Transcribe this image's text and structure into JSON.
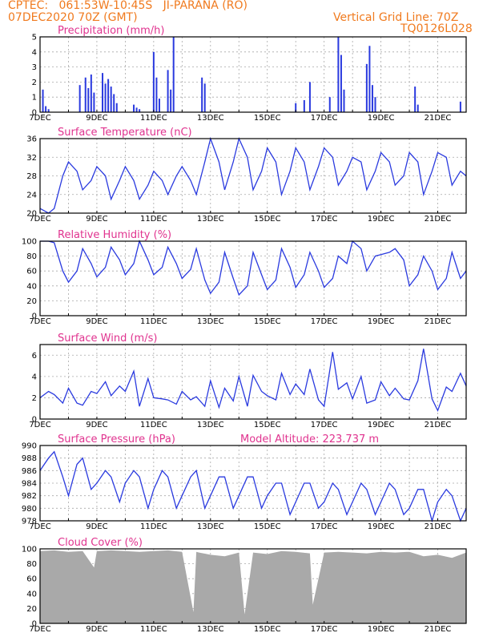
{
  "header": {
    "line1": "CPTEC:   061:53W-10:45S   JI-PARANA (RO)",
    "line2": "07DEC2020 70Z (GMT)",
    "grid_note": "Vertical Grid Line: 70Z",
    "code": "TQ0126L028"
  },
  "model_altitude": "Model Altitude: 223.737 m",
  "x_ticks": [
    "7DEC",
    "9DEC",
    "11DEC",
    "13DEC",
    "15DEC",
    "17DEC",
    "19DEC",
    "21DEC"
  ],
  "colors": {
    "header": "#f07a1e",
    "title": "#e0338f",
    "line": "#2a3adf",
    "cloud": "#a9a9a9"
  },
  "chart_data": [
    {
      "type": "bar",
      "title": "Precipitation (mm/h)",
      "ylim": [
        0,
        5
      ],
      "yticks": [
        0,
        1,
        2,
        3,
        4,
        5
      ],
      "x": [
        7.1,
        7.2,
        7.3,
        8.4,
        8.6,
        8.7,
        8.8,
        8.9,
        9.2,
        9.3,
        9.4,
        9.5,
        9.6,
        9.7,
        10.3,
        10.4,
        10.5,
        11.0,
        11.1,
        11.2,
        11.5,
        11.6,
        11.7,
        12.7,
        12.8,
        16.0,
        16.3,
        16.5,
        17.2,
        17.5,
        17.6,
        17.7,
        18.5,
        18.6,
        18.7,
        18.8,
        20.2,
        20.3,
        21.8
      ],
      "values": [
        1.5,
        0.4,
        0.2,
        1.8,
        2.3,
        1.6,
        2.5,
        1.3,
        2.6,
        1.9,
        2.2,
        1.7,
        1.2,
        0.6,
        0.5,
        0.3,
        0.2,
        4.0,
        2.3,
        0.9,
        2.8,
        1.5,
        5.0,
        2.3,
        1.9,
        0.6,
        0.8,
        2.0,
        1.0,
        5.0,
        3.8,
        1.5,
        3.2,
        4.4,
        1.8,
        1.0,
        1.7,
        0.5,
        0.7
      ]
    },
    {
      "type": "line",
      "title": "Surface Temperature (nC)",
      "ylim": [
        20,
        36
      ],
      "yticks": [
        20,
        24,
        28,
        32,
        36
      ],
      "x": [
        7.0,
        7.3,
        7.5,
        7.8,
        8.0,
        8.3,
        8.5,
        8.8,
        9.0,
        9.3,
        9.5,
        9.8,
        10.0,
        10.3,
        10.5,
        10.8,
        11.0,
        11.3,
        11.5,
        11.8,
        12.0,
        12.3,
        12.5,
        12.8,
        13.0,
        13.3,
        13.5,
        13.8,
        14.0,
        14.3,
        14.5,
        14.8,
        15.0,
        15.3,
        15.5,
        15.8,
        16.0,
        16.3,
        16.5,
        16.8,
        17.0,
        17.3,
        17.5,
        17.8,
        18.0,
        18.3,
        18.5,
        18.8,
        19.0,
        19.3,
        19.5,
        19.8,
        20.0,
        20.3,
        20.5,
        20.8,
        21.0,
        21.3,
        21.5,
        21.8,
        22.0
      ],
      "values": [
        21,
        20,
        21,
        28,
        31,
        29,
        25,
        27,
        30,
        28,
        23,
        27,
        30,
        27,
        23,
        26,
        29,
        27,
        24,
        28,
        30,
        27,
        24,
        31,
        36,
        31,
        25,
        31,
        36,
        32,
        25,
        29,
        34,
        31,
        24,
        29,
        34,
        31,
        25,
        30,
        34,
        32,
        26,
        29,
        32,
        31,
        25,
        29,
        33,
        31,
        26,
        28,
        33,
        31,
        24,
        29,
        33,
        32,
        26,
        29,
        28
      ]
    },
    {
      "type": "line",
      "title": "Relative Humidity (%)",
      "ylim": [
        0,
        100
      ],
      "yticks": [
        0,
        20,
        40,
        60,
        80,
        100
      ],
      "x": [
        7.0,
        7.3,
        7.5,
        7.8,
        8.0,
        8.3,
        8.5,
        8.8,
        9.0,
        9.3,
        9.5,
        9.8,
        10.0,
        10.3,
        10.5,
        10.8,
        11.0,
        11.3,
        11.5,
        11.8,
        12.0,
        12.3,
        12.5,
        12.8,
        13.0,
        13.3,
        13.5,
        13.8,
        14.0,
        14.3,
        14.5,
        14.8,
        15.0,
        15.3,
        15.5,
        15.8,
        16.0,
        16.3,
        16.5,
        16.8,
        17.0,
        17.3,
        17.5,
        17.8,
        18.0,
        18.3,
        18.5,
        18.8,
        19.0,
        19.3,
        19.5,
        19.8,
        20.0,
        20.3,
        20.5,
        20.8,
        21.0,
        21.3,
        21.5,
        21.8,
        22.0
      ],
      "values": [
        100,
        100,
        98,
        60,
        45,
        60,
        90,
        70,
        52,
        65,
        92,
        75,
        55,
        70,
        100,
        75,
        55,
        65,
        92,
        70,
        50,
        62,
        90,
        48,
        30,
        45,
        85,
        50,
        28,
        40,
        85,
        55,
        35,
        48,
        90,
        65,
        38,
        55,
        85,
        60,
        38,
        50,
        80,
        70,
        100,
        90,
        60,
        80,
        82,
        85,
        90,
        75,
        40,
        55,
        80,
        60,
        35,
        50,
        85,
        50,
        60
      ]
    },
    {
      "type": "line",
      "title": "Surface Wind (m/s)",
      "ylim": [
        0,
        7
      ],
      "yticks": [
        0,
        2,
        4,
        6
      ],
      "x": [
        7.0,
        7.3,
        7.5,
        7.8,
        8.0,
        8.3,
        8.5,
        8.8,
        9.0,
        9.3,
        9.5,
        9.8,
        10.0,
        10.3,
        10.5,
        10.8,
        11.0,
        11.3,
        11.5,
        11.8,
        12.0,
        12.3,
        12.5,
        12.8,
        13.0,
        13.3,
        13.5,
        13.8,
        14.0,
        14.3,
        14.5,
        14.8,
        15.0,
        15.3,
        15.5,
        15.8,
        16.0,
        16.3,
        16.5,
        16.8,
        17.0,
        17.3,
        17.5,
        17.8,
        18.0,
        18.3,
        18.5,
        18.8,
        19.0,
        19.3,
        19.5,
        19.8,
        20.0,
        20.3,
        20.5,
        20.8,
        21.0,
        21.3,
        21.5,
        21.8,
        22.0
      ],
      "values": [
        2.0,
        2.6,
        2.3,
        1.5,
        2.9,
        1.5,
        1.3,
        2.6,
        2.4,
        3.5,
        2.2,
        3.1,
        2.6,
        4.5,
        1.2,
        3.8,
        2.0,
        1.9,
        1.8,
        1.4,
        2.6,
        1.8,
        2.1,
        1.2,
        3.6,
        1.1,
        2.9,
        1.7,
        4.0,
        1.2,
        4.1,
        2.6,
        2.2,
        1.8,
        4.3,
        2.3,
        3.3,
        2.3,
        4.7,
        1.8,
        1.2,
        6.3,
        2.8,
        3.4,
        1.9,
        4.0,
        1.5,
        1.8,
        3.5,
        2.2,
        2.9,
        1.9,
        1.8,
        3.6,
        6.6,
        1.9,
        0.8,
        3.0,
        2.6,
        4.3,
        3.1
      ]
    },
    {
      "type": "line",
      "title": "Surface Pressure (hPa)",
      "ylim": [
        978,
        990
      ],
      "yticks": [
        978,
        980,
        982,
        984,
        986,
        988,
        990
      ],
      "x": [
        7.0,
        7.3,
        7.5,
        7.8,
        8.0,
        8.3,
        8.5,
        8.8,
        9.0,
        9.3,
        9.5,
        9.8,
        10.0,
        10.3,
        10.5,
        10.8,
        11.0,
        11.3,
        11.5,
        11.8,
        12.0,
        12.3,
        12.5,
        12.8,
        13.0,
        13.3,
        13.5,
        13.8,
        14.0,
        14.3,
        14.5,
        14.8,
        15.0,
        15.3,
        15.5,
        15.8,
        16.0,
        16.3,
        16.5,
        16.8,
        17.0,
        17.3,
        17.5,
        17.8,
        18.0,
        18.3,
        18.5,
        18.8,
        19.0,
        19.3,
        19.5,
        19.8,
        20.0,
        20.3,
        20.5,
        20.8,
        21.0,
        21.3,
        21.5,
        21.8,
        22.0
      ],
      "values": [
        986,
        988,
        989,
        985,
        982,
        987,
        988,
        983,
        984,
        986,
        985,
        981,
        984,
        986,
        985,
        980,
        983,
        986,
        985,
        980,
        982,
        985,
        986,
        980,
        982,
        985,
        985,
        980,
        982,
        985,
        985,
        980,
        982,
        984,
        984,
        979,
        981,
        984,
        984,
        980,
        981,
        984,
        983,
        979,
        981,
        984,
        983,
        979,
        981,
        984,
        983,
        979,
        980,
        983,
        983,
        978,
        981,
        983,
        982,
        978,
        980
      ]
    },
    {
      "type": "area",
      "title": "Cloud Cover (%)",
      "ylim": [
        0,
        100
      ],
      "yticks": [
        0,
        20,
        40,
        60,
        80,
        100
      ],
      "x": [
        7.0,
        7.5,
        8.0,
        8.5,
        8.9,
        9.0,
        9.5,
        10.0,
        10.5,
        11.0,
        11.5,
        12.0,
        12.4,
        12.5,
        12.6,
        13.0,
        13.5,
        14.0,
        14.2,
        14.5,
        15.0,
        15.5,
        16.0,
        16.5,
        16.6,
        16.8,
        17.0,
        17.5,
        18.0,
        18.5,
        19.0,
        19.5,
        20.0,
        20.5,
        21.0,
        21.5,
        22.0
      ],
      "values": [
        97,
        98,
        96,
        97,
        75,
        97,
        98,
        97,
        96,
        97,
        98,
        96,
        15,
        96,
        95,
        92,
        90,
        95,
        12,
        95,
        93,
        97,
        96,
        94,
        25,
        60,
        95,
        96,
        95,
        94,
        96,
        95,
        96,
        90,
        92,
        88,
        95
      ]
    }
  ]
}
